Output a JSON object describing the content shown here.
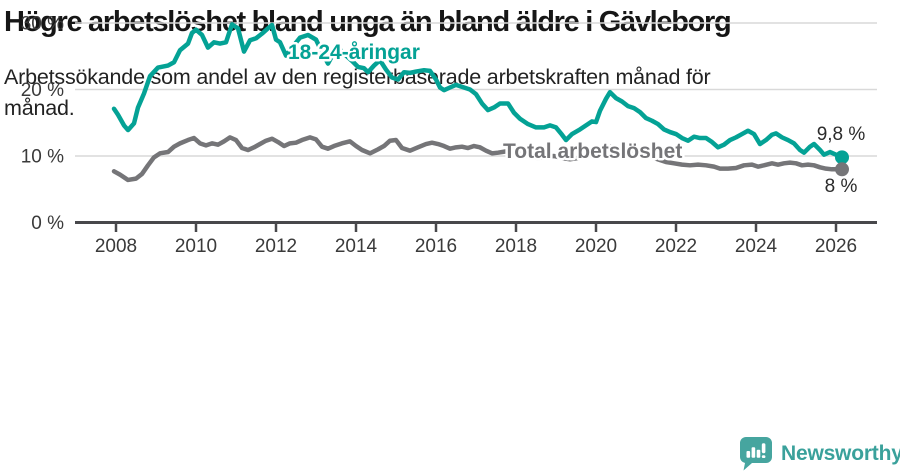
{
  "footer": {
    "brand": "Newsworthy"
  },
  "chart_data": {
    "type": "line",
    "title": "Högre arbetslöshet bland unga än bland äldre i Gävleborg",
    "subtitle": "Arbetssökande som andel av den registerbaserade arbetskraften månad för\nmånad.",
    "xlabel": "",
    "ylabel": "",
    "xlim": [
      2007,
      2027
    ],
    "ylim": [
      0,
      30
    ],
    "grid": "horizontal",
    "legend_position": "inline-labels",
    "x_ticks": [
      2008,
      2010,
      2012,
      2014,
      2016,
      2018,
      2020,
      2022,
      2024,
      2026
    ],
    "y_ticks": [
      {
        "value": 0,
        "label": "0 %"
      },
      {
        "value": 10,
        "label": "10 %"
      },
      {
        "value": 20,
        "label": "20 %"
      },
      {
        "value": 30,
        "label": "30 %"
      }
    ],
    "series": [
      {
        "name": "18-24-åringar",
        "color": "#04a295",
        "end_label": "9,8 %",
        "end_value": 9.8,
        "points": [
          [
            2007.95,
            17.1
          ],
          [
            2008.05,
            16.2
          ],
          [
            2008.2,
            14.6
          ],
          [
            2008.3,
            13.9
          ],
          [
            2008.45,
            14.9
          ],
          [
            2008.55,
            17.3
          ],
          [
            2008.7,
            19.4
          ],
          [
            2008.85,
            22.0
          ],
          [
            2009.05,
            23.3
          ],
          [
            2009.3,
            23.6
          ],
          [
            2009.45,
            24.1
          ],
          [
            2009.6,
            25.9
          ],
          [
            2009.8,
            26.9
          ],
          [
            2009.9,
            28.5
          ],
          [
            2010.0,
            29.0
          ],
          [
            2010.15,
            28.2
          ],
          [
            2010.3,
            26.3
          ],
          [
            2010.45,
            27.1
          ],
          [
            2010.6,
            26.9
          ],
          [
            2010.75,
            27.1
          ],
          [
            2010.9,
            29.8
          ],
          [
            2011.05,
            29.2
          ],
          [
            2011.2,
            25.7
          ],
          [
            2011.35,
            27.4
          ],
          [
            2011.5,
            27.7
          ],
          [
            2011.65,
            28.4
          ],
          [
            2011.8,
            29.2
          ],
          [
            2011.9,
            29.7
          ],
          [
            2012.0,
            27.5
          ],
          [
            2012.1,
            27.1
          ],
          [
            2012.25,
            25.1
          ],
          [
            2012.4,
            26.3
          ],
          [
            2012.6,
            27.8
          ],
          [
            2012.8,
            28.2
          ],
          [
            2013.0,
            27.5
          ],
          [
            2013.15,
            25.6
          ],
          [
            2013.3,
            23.9
          ],
          [
            2013.45,
            25.6
          ],
          [
            2013.6,
            26.0
          ],
          [
            2013.75,
            25.1
          ],
          [
            2013.9,
            24.3
          ],
          [
            2014.05,
            23.4
          ],
          [
            2014.2,
            23.2
          ],
          [
            2014.3,
            22.6
          ],
          [
            2014.45,
            23.6
          ],
          [
            2014.6,
            24.4
          ],
          [
            2014.75,
            23.0
          ],
          [
            2014.9,
            21.8
          ],
          [
            2015.05,
            21.5
          ],
          [
            2015.2,
            22.6
          ],
          [
            2015.35,
            22.5
          ],
          [
            2015.5,
            22.7
          ],
          [
            2015.7,
            22.9
          ],
          [
            2015.85,
            22.8
          ],
          [
            2016.0,
            21.5
          ],
          [
            2016.1,
            20.3
          ],
          [
            2016.2,
            19.9
          ],
          [
            2016.35,
            20.3
          ],
          [
            2016.5,
            20.7
          ],
          [
            2016.7,
            20.3
          ],
          [
            2016.85,
            20.0
          ],
          [
            2017.0,
            19.3
          ],
          [
            2017.15,
            17.9
          ],
          [
            2017.3,
            16.9
          ],
          [
            2017.45,
            17.3
          ],
          [
            2017.6,
            17.9
          ],
          [
            2017.8,
            17.9
          ],
          [
            2017.95,
            16.5
          ],
          [
            2018.1,
            15.6
          ],
          [
            2018.3,
            14.8
          ],
          [
            2018.5,
            14.3
          ],
          [
            2018.7,
            14.3
          ],
          [
            2018.85,
            14.6
          ],
          [
            2019.0,
            14.3
          ],
          [
            2019.15,
            13.2
          ],
          [
            2019.25,
            12.4
          ],
          [
            2019.4,
            13.3
          ],
          [
            2019.6,
            14.0
          ],
          [
            2019.75,
            14.6
          ],
          [
            2019.9,
            15.2
          ],
          [
            2020.0,
            15.1
          ],
          [
            2020.1,
            16.8
          ],
          [
            2020.25,
            18.6
          ],
          [
            2020.35,
            19.6
          ],
          [
            2020.5,
            18.7
          ],
          [
            2020.65,
            18.2
          ],
          [
            2020.8,
            17.5
          ],
          [
            2020.95,
            17.2
          ],
          [
            2021.1,
            16.6
          ],
          [
            2021.25,
            15.7
          ],
          [
            2021.4,
            15.3
          ],
          [
            2021.55,
            14.8
          ],
          [
            2021.7,
            14.0
          ],
          [
            2021.85,
            13.6
          ],
          [
            2022.0,
            13.3
          ],
          [
            2022.15,
            12.7
          ],
          [
            2022.3,
            12.3
          ],
          [
            2022.45,
            12.9
          ],
          [
            2022.6,
            12.7
          ],
          [
            2022.75,
            12.7
          ],
          [
            2022.9,
            12.1
          ],
          [
            2023.05,
            11.3
          ],
          [
            2023.2,
            11.7
          ],
          [
            2023.35,
            12.4
          ],
          [
            2023.5,
            12.8
          ],
          [
            2023.65,
            13.3
          ],
          [
            2023.8,
            13.8
          ],
          [
            2023.95,
            13.3
          ],
          [
            2024.1,
            11.8
          ],
          [
            2024.25,
            12.4
          ],
          [
            2024.4,
            13.2
          ],
          [
            2024.5,
            13.4
          ],
          [
            2024.65,
            12.8
          ],
          [
            2024.8,
            12.4
          ],
          [
            2024.95,
            11.9
          ],
          [
            2025.1,
            10.9
          ],
          [
            2025.2,
            10.5
          ],
          [
            2025.35,
            11.4
          ],
          [
            2025.45,
            11.8
          ],
          [
            2025.6,
            10.9
          ],
          [
            2025.7,
            10.2
          ],
          [
            2025.85,
            10.6
          ],
          [
            2026.0,
            10.2
          ],
          [
            2026.15,
            9.8
          ]
        ]
      },
      {
        "name": "Total arbetslöshet",
        "color": "#757578",
        "end_label": "8 %",
        "end_value": 8,
        "points": [
          [
            2007.95,
            7.7
          ],
          [
            2008.1,
            7.2
          ],
          [
            2008.3,
            6.4
          ],
          [
            2008.5,
            6.6
          ],
          [
            2008.65,
            7.3
          ],
          [
            2008.8,
            8.6
          ],
          [
            2008.95,
            9.8
          ],
          [
            2009.1,
            10.4
          ],
          [
            2009.3,
            10.6
          ],
          [
            2009.45,
            11.4
          ],
          [
            2009.6,
            11.9
          ],
          [
            2009.8,
            12.4
          ],
          [
            2009.95,
            12.7
          ],
          [
            2010.1,
            11.9
          ],
          [
            2010.25,
            11.6
          ],
          [
            2010.4,
            11.9
          ],
          [
            2010.55,
            11.7
          ],
          [
            2010.7,
            12.2
          ],
          [
            2010.85,
            12.8
          ],
          [
            2011.0,
            12.4
          ],
          [
            2011.15,
            11.2
          ],
          [
            2011.3,
            10.9
          ],
          [
            2011.45,
            11.3
          ],
          [
            2011.6,
            11.8
          ],
          [
            2011.75,
            12.3
          ],
          [
            2011.9,
            12.6
          ],
          [
            2012.05,
            12.1
          ],
          [
            2012.2,
            11.5
          ],
          [
            2012.35,
            11.9
          ],
          [
            2012.5,
            12.0
          ],
          [
            2012.65,
            12.4
          ],
          [
            2012.85,
            12.8
          ],
          [
            2013.0,
            12.5
          ],
          [
            2013.15,
            11.4
          ],
          [
            2013.3,
            11.1
          ],
          [
            2013.45,
            11.5
          ],
          [
            2013.65,
            11.9
          ],
          [
            2013.85,
            12.2
          ],
          [
            2014.0,
            11.5
          ],
          [
            2014.15,
            10.9
          ],
          [
            2014.35,
            10.4
          ],
          [
            2014.55,
            11.0
          ],
          [
            2014.7,
            11.5
          ],
          [
            2014.85,
            12.3
          ],
          [
            2015.0,
            12.4
          ],
          [
            2015.15,
            11.2
          ],
          [
            2015.35,
            10.8
          ],
          [
            2015.55,
            11.3
          ],
          [
            2015.75,
            11.8
          ],
          [
            2015.9,
            12.0
          ],
          [
            2016.05,
            11.8
          ],
          [
            2016.2,
            11.5
          ],
          [
            2016.35,
            11.1
          ],
          [
            2016.5,
            11.3
          ],
          [
            2016.65,
            11.4
          ],
          [
            2016.8,
            11.2
          ],
          [
            2016.95,
            11.5
          ],
          [
            2017.1,
            11.3
          ],
          [
            2017.25,
            10.8
          ],
          [
            2017.4,
            10.4
          ],
          [
            2017.55,
            10.5
          ],
          [
            2017.75,
            10.7
          ],
          [
            2017.95,
            10.8
          ],
          [
            2018.15,
            10.3
          ],
          [
            2018.35,
            9.9
          ],
          [
            2018.55,
            9.7
          ],
          [
            2018.75,
            9.9
          ],
          [
            2018.95,
            10.0
          ],
          [
            2019.15,
            9.7
          ],
          [
            2019.35,
            9.5
          ],
          [
            2019.55,
            9.7
          ],
          [
            2019.75,
            9.9
          ],
          [
            2019.95,
            10.2
          ],
          [
            2020.15,
            10.9
          ],
          [
            2020.35,
            11.4
          ],
          [
            2020.55,
            11.2
          ],
          [
            2020.75,
            11.0
          ],
          [
            2020.95,
            10.7
          ],
          [
            2021.15,
            10.3
          ],
          [
            2021.35,
            9.9
          ],
          [
            2021.55,
            9.5
          ],
          [
            2021.75,
            9.1
          ],
          [
            2021.95,
            8.9
          ],
          [
            2022.15,
            8.7
          ],
          [
            2022.35,
            8.6
          ],
          [
            2022.55,
            8.7
          ],
          [
            2022.75,
            8.6
          ],
          [
            2022.95,
            8.4
          ],
          [
            2023.1,
            8.1
          ],
          [
            2023.3,
            8.1
          ],
          [
            2023.5,
            8.2
          ],
          [
            2023.7,
            8.6
          ],
          [
            2023.9,
            8.7
          ],
          [
            2024.05,
            8.4
          ],
          [
            2024.2,
            8.6
          ],
          [
            2024.4,
            8.9
          ],
          [
            2024.55,
            8.7
          ],
          [
            2024.7,
            8.9
          ],
          [
            2024.85,
            9.0
          ],
          [
            2025.0,
            8.9
          ],
          [
            2025.15,
            8.6
          ],
          [
            2025.3,
            8.7
          ],
          [
            2025.45,
            8.6
          ],
          [
            2025.6,
            8.3
          ],
          [
            2025.75,
            8.1
          ],
          [
            2025.9,
            8.0
          ],
          [
            2026.15,
            8.0
          ]
        ]
      }
    ]
  }
}
